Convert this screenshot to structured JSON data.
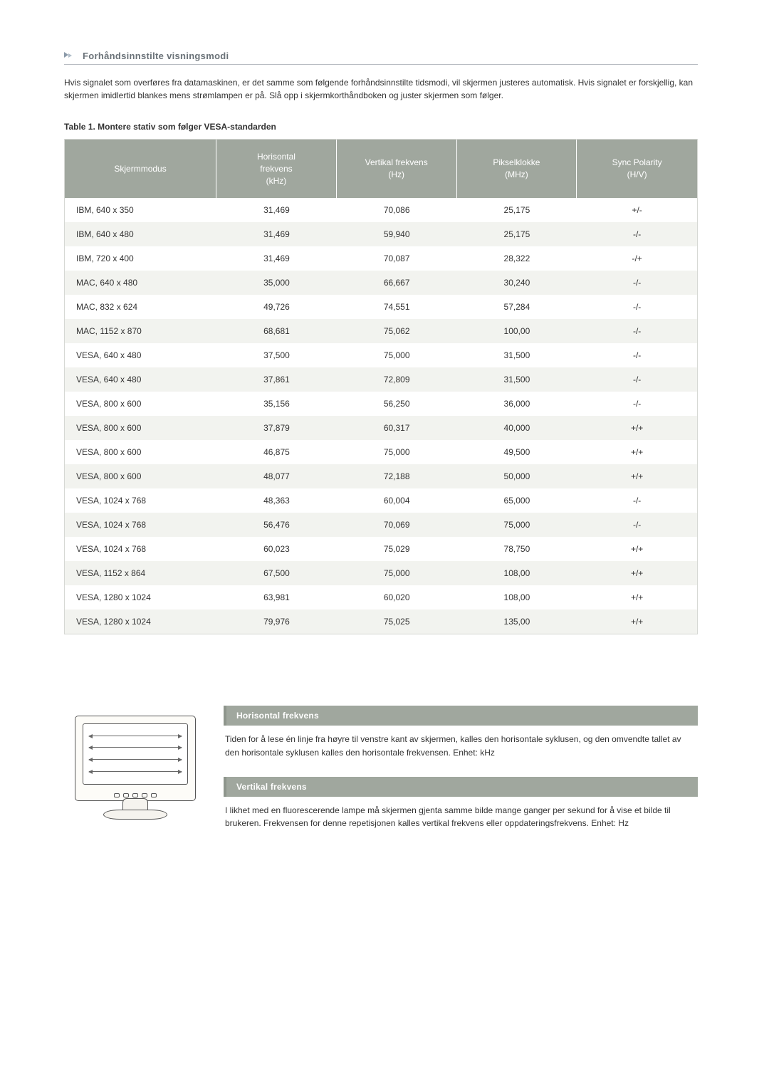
{
  "section": {
    "title": "Forhåndsinnstilte visningsmodi",
    "intro": "Hvis signalet som overføres fra datamaskinen, er det samme som følgende forhåndsinnstilte tidsmodi, vil skjermen justeres automatisk. Hvis signalet er forskjellig, kan skjermen imidlertid blankes mens strømlampen er på. Slå opp i skjermkorthåndboken og juster skjermen som følger."
  },
  "table": {
    "caption": "Table 1. Montere stativ som følger VESA-standarden",
    "header_bg": "#a0a79e",
    "header_fg": "#ffffff",
    "row_odd_bg": "#ffffff",
    "row_even_bg": "#f2f3ef",
    "border_color": "#d6d8d4",
    "columns": [
      "Skjermmodus",
      "Horisontal frekvens (kHz)",
      "Vertikal frekvens (Hz)",
      "Pikselklokke (MHz)",
      "Sync Polarity (H/V)"
    ],
    "column_headers_multiline": [
      "Skjermmodus",
      "Horisontal\nfrekvens\n(kHz)",
      "Vertikal frekvens\n(Hz)",
      "Pikselklokke\n(MHz)",
      "Sync Polarity\n(H/V)"
    ],
    "col_widths": [
      "24%",
      "19%",
      "19%",
      "19%",
      "19%"
    ],
    "rows": [
      [
        "IBM, 640 x 350",
        "31,469",
        "70,086",
        "25,175",
        "+/-"
      ],
      [
        "IBM, 640 x 480",
        "31,469",
        "59,940",
        "25,175",
        "-/-"
      ],
      [
        "IBM, 720 x 400",
        "31,469",
        "70,087",
        "28,322",
        "-/+"
      ],
      [
        "MAC, 640 x 480",
        "35,000",
        "66,667",
        "30,240",
        "-/-"
      ],
      [
        "MAC, 832 x 624",
        "49,726",
        "74,551",
        "57,284",
        "-/-"
      ],
      [
        "MAC, 1152 x 870",
        "68,681",
        "75,062",
        "100,00",
        "-/-"
      ],
      [
        "VESA, 640 x 480",
        "37,500",
        "75,000",
        "31,500",
        "-/-"
      ],
      [
        "VESA, 640 x 480",
        "37,861",
        "72,809",
        "31,500",
        "-/-"
      ],
      [
        "VESA, 800 x 600",
        "35,156",
        "56,250",
        "36,000",
        "-/-"
      ],
      [
        "VESA, 800 x 600",
        "37,879",
        "60,317",
        "40,000",
        "+/+"
      ],
      [
        "VESA, 800 x 600",
        "46,875",
        "75,000",
        "49,500",
        "+/+"
      ],
      [
        "VESA, 800 x 600",
        "48,077",
        "72,188",
        "50,000",
        "+/+"
      ],
      [
        "VESA, 1024 x 768",
        "48,363",
        "60,004",
        "65,000",
        "-/-"
      ],
      [
        "VESA, 1024 x 768",
        "56,476",
        "70,069",
        "75,000",
        "-/-"
      ],
      [
        "VESA, 1024 x 768",
        "60,023",
        "75,029",
        "78,750",
        "+/+"
      ],
      [
        "VESA, 1152 x 864",
        "67,500",
        "75,000",
        "108,00",
        "+/+"
      ],
      [
        "VESA, 1280 x 1024",
        "63,981",
        "60,020",
        "108,00",
        "+/+"
      ],
      [
        "VESA, 1280 x 1024",
        "79,976",
        "75,025",
        "135,00",
        "+/+"
      ]
    ]
  },
  "definitions": {
    "horizontal": {
      "title": "Horisontal frekvens",
      "text": "Tiden for å lese én linje fra høyre til venstre kant av skjermen, kalles den horisontale syklusen, og den omvendte tallet av den horisontale syklusen kalles den horisontale frekvensen. Enhet: kHz"
    },
    "vertical": {
      "title": "Vertikal frekvens",
      "text": "I likhet med en fluorescerende lampe må skjermen gjenta samme bilde mange ganger per sekund for å vise et bilde til brukeren. Frekvensen for denne repetisjonen kalles vertikal frekvens eller oppdateringsfrekvens. Enhet: Hz"
    },
    "header_bg": "#a0a79e",
    "header_border": "#8e958c"
  }
}
